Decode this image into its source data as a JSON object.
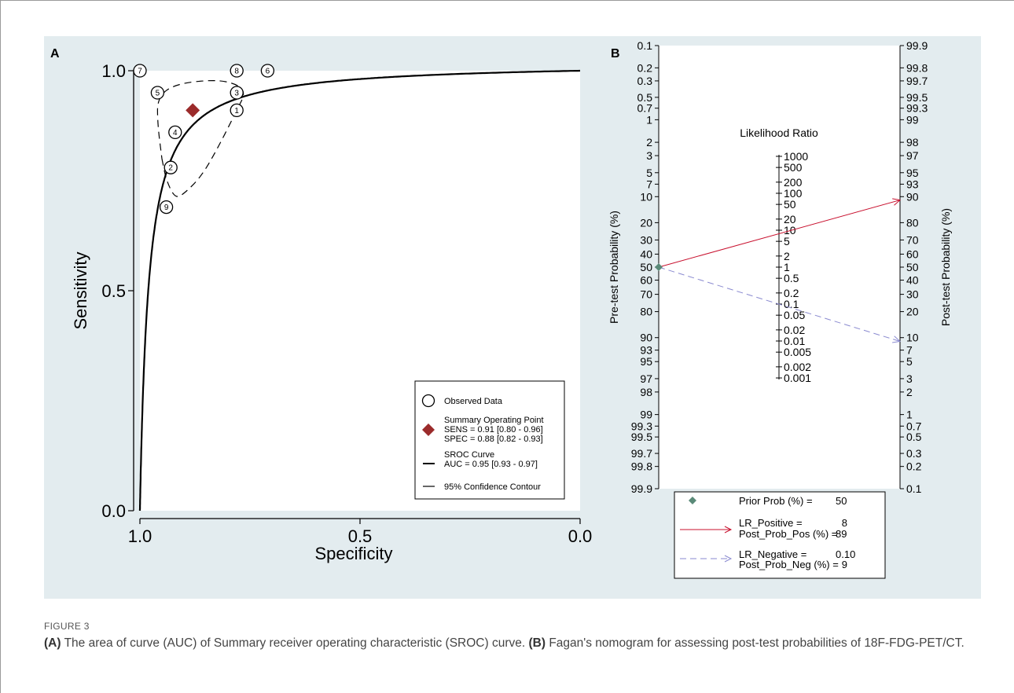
{
  "figure_label": "FIGURE 3",
  "caption": {
    "part_a_label": "(A)",
    "part_a_text": "The area of curve (AUC) of Summary receiver operating characteristic (SROC) curve.",
    "part_b_label": "(B)",
    "part_b_text": "Fagan's nomogram for assessing post-test probabilities of 18F-FDG-PET/CT."
  },
  "colors": {
    "panel_bg": "#e3ecef",
    "summary_point": "#9b2b2b",
    "lr_positive": "#c8102e",
    "lr_negative": "#8a8ad0",
    "prior_marker": "#5a8a78"
  },
  "chart_data": [
    {
      "type": "scatter",
      "panel": "A",
      "xlabel": "Specificity",
      "ylabel": "Sensitivity",
      "xlim": [
        1.0,
        0.0
      ],
      "ylim": [
        0.0,
        1.0
      ],
      "x_ticks": [
        "1.0",
        "0.5",
        "0.0"
      ],
      "y_ticks": [
        "0.0",
        "0.5",
        "1.0"
      ],
      "observed": [
        {
          "id": "1",
          "spec": 0.78,
          "sens": 0.91
        },
        {
          "id": "2",
          "spec": 0.93,
          "sens": 0.78
        },
        {
          "id": "3",
          "spec": 0.78,
          "sens": 0.95
        },
        {
          "id": "4",
          "spec": 0.92,
          "sens": 0.86
        },
        {
          "id": "5",
          "spec": 0.96,
          "sens": 0.95
        },
        {
          "id": "6",
          "spec": 0.71,
          "sens": 1.0
        },
        {
          "id": "7",
          "spec": 1.0,
          "sens": 1.0
        },
        {
          "id": "8",
          "spec": 0.78,
          "sens": 1.0
        },
        {
          "id": "9",
          "spec": 0.94,
          "sens": 0.69
        }
      ],
      "summary_point": {
        "spec": 0.88,
        "sens": 0.91
      },
      "sroc_auc": 0.95,
      "confidence_contour": [
        [
          0.95,
          0.8
        ],
        [
          0.94,
          0.75
        ],
        [
          0.92,
          0.71
        ],
        [
          0.9,
          0.72
        ],
        [
          0.86,
          0.76
        ],
        [
          0.82,
          0.83
        ],
        [
          0.78,
          0.91
        ],
        [
          0.76,
          0.95
        ],
        [
          0.78,
          0.97
        ],
        [
          0.83,
          0.98
        ],
        [
          0.92,
          0.97
        ],
        [
          0.96,
          0.94
        ],
        [
          0.96,
          0.88
        ],
        [
          0.95,
          0.8
        ]
      ],
      "legend": {
        "observed": "Observed Data",
        "summary_title": "Summary Operating  Point",
        "sens_line": "SENS = 0.91 [0.80 - 0.96]",
        "spec_line": "SPEC = 0.88 [0.82 - 0.93]",
        "sroc_title": "SROC Curve",
        "auc_line": "AUC = 0.95 [0.93 - 0.97]",
        "contour": "95% Confidence Contour"
      }
    },
    {
      "type": "line",
      "panel": "B",
      "left_axis_label": "Pre-test Probability (%)",
      "right_axis_label": "Post-test Probability (%)",
      "center_label": "Likelihood Ratio",
      "left_ticks": [
        "0.1",
        "0.2",
        "0.3",
        "0.5",
        "0.7",
        "1",
        "2",
        "3",
        "5",
        "7",
        "10",
        "20",
        "30",
        "40",
        "50",
        "60",
        "70",
        "80",
        "90",
        "93",
        "95",
        "97",
        "98",
        "99",
        "99.3",
        "99.5",
        "99.7",
        "99.8",
        "99.9"
      ],
      "right_ticks": [
        "99.9",
        "99.8",
        "99.7",
        "99.5",
        "99.3",
        "99",
        "98",
        "97",
        "95",
        "93",
        "90",
        "80",
        "70",
        "60",
        "50",
        "40",
        "30",
        "20",
        "10",
        "7",
        "5",
        "3",
        "2",
        "1",
        "0.7",
        "0.5",
        "0.3",
        "0.2",
        "0.1"
      ],
      "lr_ticks": [
        "1000",
        "500",
        "200",
        "100",
        "50",
        "20",
        "10",
        "5",
        "2",
        "1",
        "0.5",
        "0.2",
        "0.1",
        "0.05",
        "0.02",
        "0.01",
        "0.005",
        "0.002",
        "0.001"
      ],
      "prior_prob": 50,
      "lr_positive": 8,
      "post_prob_pos": 89,
      "lr_negative": 0.1,
      "post_prob_neg": 9,
      "legend": {
        "prior_label": "Prior Prob (%) =",
        "prior_value": "50",
        "lrpos_label": "LR_Positive =",
        "lrpos_value": "8",
        "postpos_label": "Post_Prob_Pos (%) =",
        "postpos_value": "89",
        "lrneg_label": "LR_Negative =",
        "lrneg_value": "0.10",
        "postneg_label": "Post_Prob_Neg (%) =",
        "postneg_value": "9"
      }
    }
  ],
  "panel_labels": {
    "a": "A",
    "b": "B"
  }
}
